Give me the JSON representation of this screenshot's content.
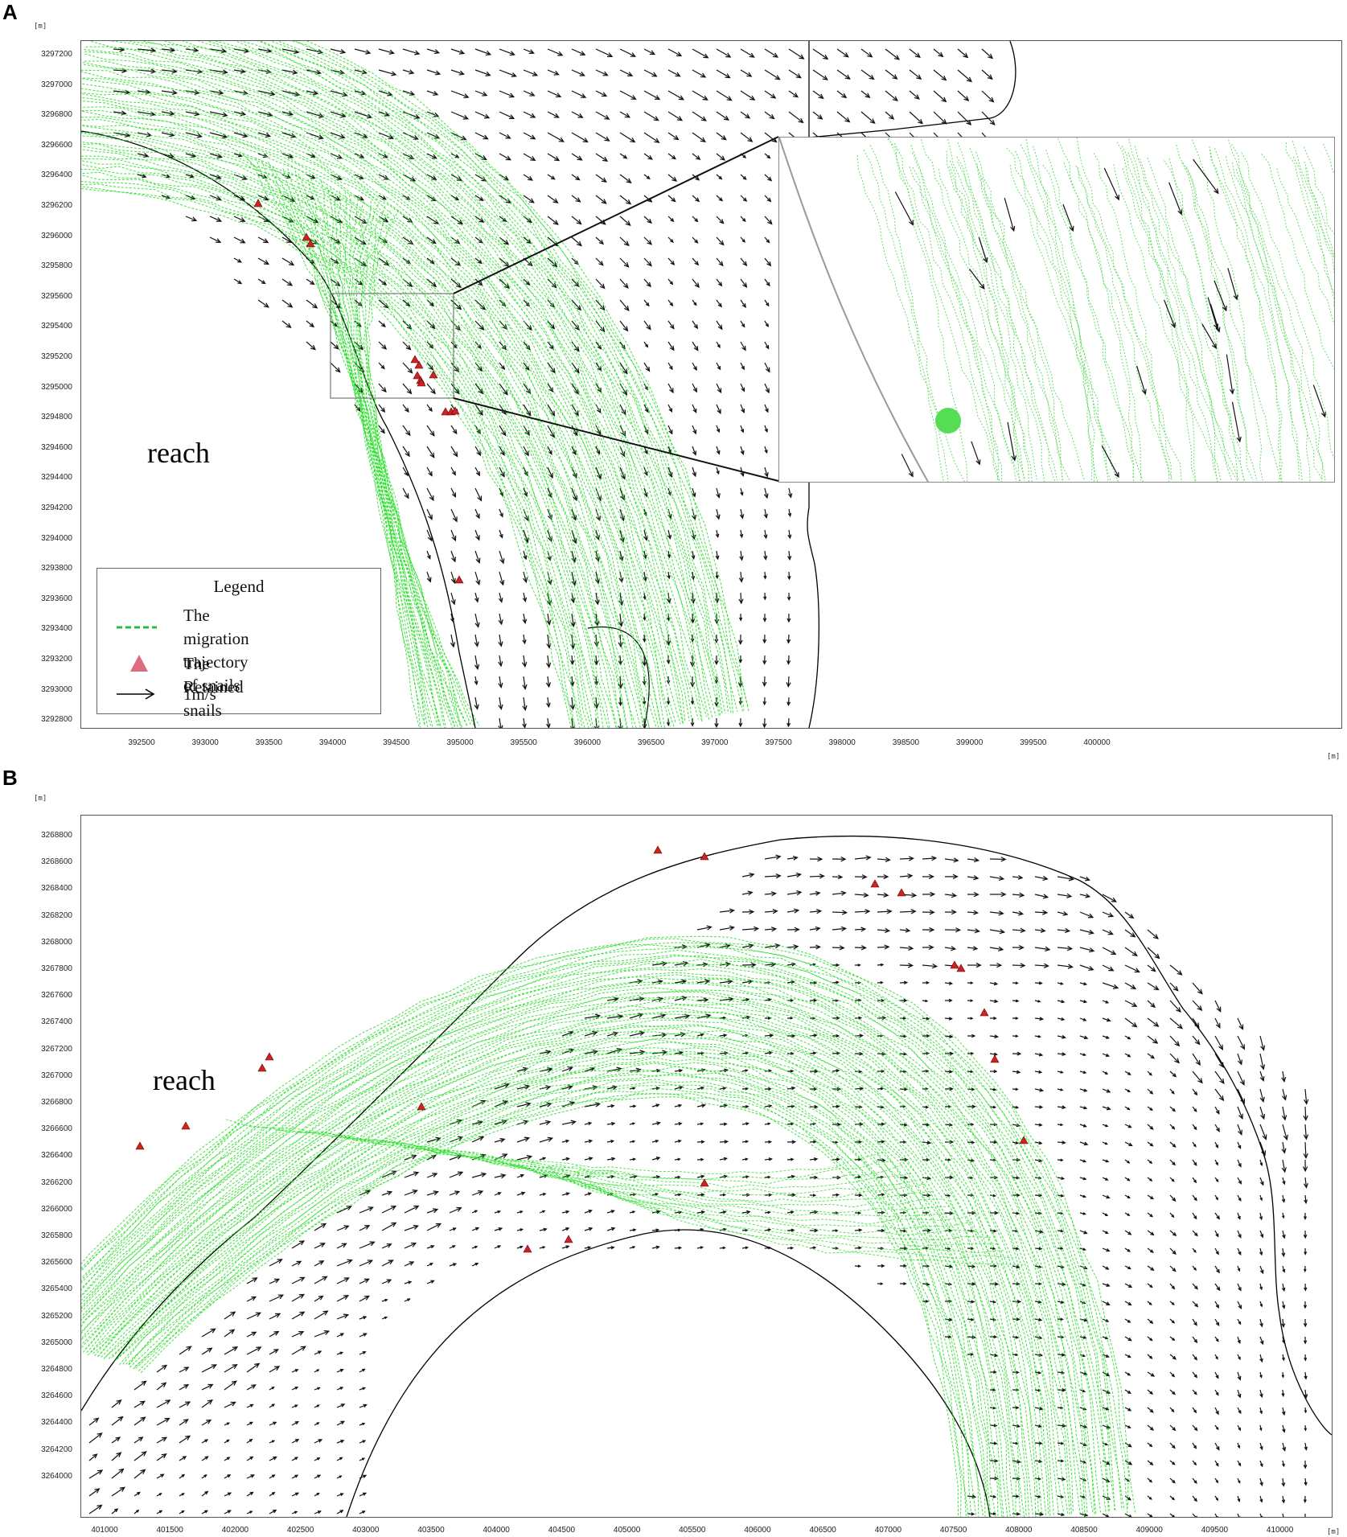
{
  "panels": [
    {
      "letter": "A",
      "unit_top": "[m]",
      "unit_right": "[m]",
      "y_ticks": [
        "3297200",
        "3297000",
        "3296800",
        "3296600",
        "3296400",
        "3296200",
        "3296000",
        "3295800",
        "3295600",
        "3295400",
        "3295200",
        "3295000",
        "3294800",
        "3294600",
        "3294400",
        "3294200",
        "3294000",
        "3293800",
        "3293600",
        "3293400",
        "3293200",
        "3293000",
        "3292800"
      ],
      "x_ticks": [
        "392500",
        "393000",
        "393500",
        "394000",
        "394500",
        "395000",
        "395500",
        "396000",
        "396500",
        "397000",
        "397500",
        "398000",
        "398500",
        "399000",
        "399500",
        "400000"
      ],
      "label": "reach"
    },
    {
      "letter": "B",
      "unit_top": "[m]",
      "unit_right": "[m]",
      "y_ticks": [
        "3268800",
        "3268600",
        "3268400",
        "3268200",
        "3268000",
        "3267800",
        "3267600",
        "3267400",
        "3267200",
        "3267000",
        "3266800",
        "3266600",
        "3266400",
        "3266200",
        "3266000",
        "3265800",
        "3265600",
        "3265400",
        "3265200",
        "3265000",
        "3264800",
        "3264600",
        "3264400",
        "3264200",
        "3264000"
      ],
      "x_ticks": [
        "401000",
        "401500",
        "402000",
        "402500",
        "403000",
        "403500",
        "404000",
        "404500",
        "405000",
        "405500",
        "406000",
        "406500",
        "407000",
        "407500",
        "408000",
        "408500",
        "409000",
        "409500",
        "410000"
      ],
      "label": "reach"
    }
  ],
  "legend": {
    "title": "Legend",
    "items": [
      {
        "label_line1": "The migration trajectory",
        "label_line2": "of snails",
        "symbol": "green-dashed-line",
        "color": "#2db84a"
      },
      {
        "label_line1": "The Retained snails",
        "label_line2": "",
        "symbol": "triangle",
        "color": "#e06b80"
      },
      {
        "label_line1": "1m/s",
        "label_line2": "",
        "symbol": "arrow",
        "color": "#000000"
      }
    ]
  },
  "colors": {
    "trajectory": "#22dd22",
    "arrow": "#111111",
    "snail_marker": "#cc2222",
    "bank_line": "#000000"
  }
}
